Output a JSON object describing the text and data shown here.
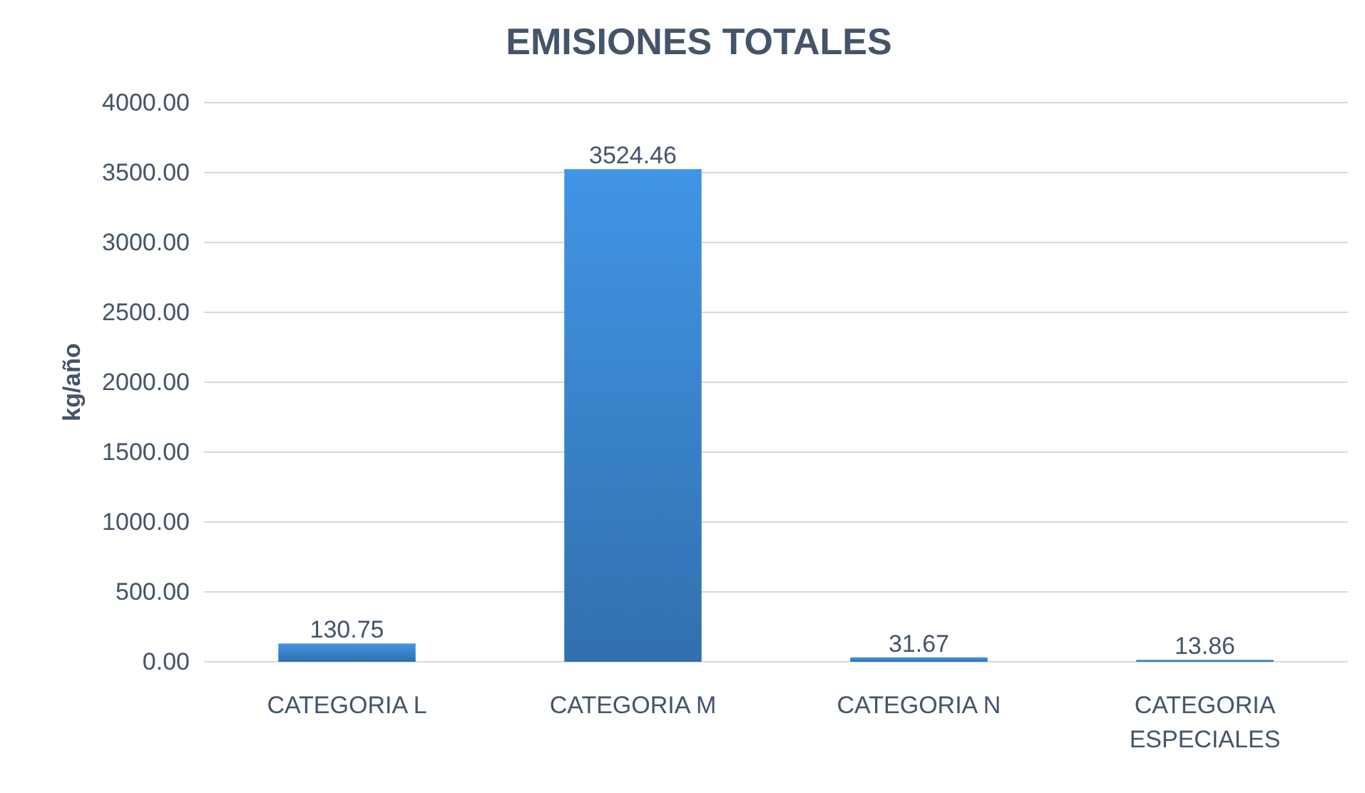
{
  "chart_data": {
    "type": "bar",
    "title": "EMISIONES TOTALES",
    "ylabel": "kg/año",
    "categories": [
      "CATEGORIA L",
      "CATEGORIA M",
      "CATEGORIA N",
      "CATEGORIA ESPECIALES"
    ],
    "values": [
      130.75,
      3524.46,
      31.67,
      13.86
    ],
    "color": "#3a86cf",
    "ylim": [
      0,
      4000
    ],
    "yticks": [
      {
        "value": 0,
        "label": "0.00"
      },
      {
        "value": 500,
        "label": "500.00"
      },
      {
        "value": 1000,
        "label": "1000.00"
      },
      {
        "value": 1500,
        "label": "1500.00"
      },
      {
        "value": 2000,
        "label": "2000.00"
      },
      {
        "value": 2500,
        "label": "2500.00"
      },
      {
        "value": 3000,
        "label": "3000.00"
      },
      {
        "value": 3500,
        "label": "3500.00"
      },
      {
        "value": 4000,
        "label": "4000.00"
      }
    ],
    "grid": "y",
    "data_labels": true
  }
}
